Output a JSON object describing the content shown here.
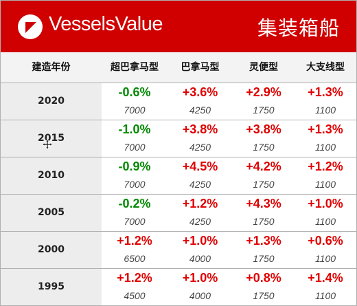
{
  "header": {
    "brand": "VesselsValue",
    "title": "集装箱船",
    "logo_icon": "vesselsvalue-triangle-logo-icon",
    "background_color": "#d00000"
  },
  "columns": [
    "建造年份",
    "超巴拿马型",
    "巴拿马型",
    "灵便型",
    "大支线型"
  ],
  "colors": {
    "negative": "#008a00",
    "positive": "#e00000"
  },
  "rows": [
    {
      "year": "2020",
      "cells": [
        {
          "pct": "-0.6%",
          "count": "7000"
        },
        {
          "pct": "+3.6%",
          "count": "4250"
        },
        {
          "pct": "+2.9%",
          "count": "1750"
        },
        {
          "pct": "+1.3%",
          "count": "1100"
        }
      ]
    },
    {
      "year": "2015",
      "cells": [
        {
          "pct": "-1.0%",
          "count": "7000"
        },
        {
          "pct": "+3.8%",
          "count": "4250"
        },
        {
          "pct": "+3.8%",
          "count": "1750"
        },
        {
          "pct": "+1.3%",
          "count": "1100"
        }
      ]
    },
    {
      "year": "2010",
      "cells": [
        {
          "pct": "-0.9%",
          "count": "7000"
        },
        {
          "pct": "+4.5%",
          "count": "4250"
        },
        {
          "pct": "+4.2%",
          "count": "1750"
        },
        {
          "pct": "+1.2%",
          "count": "1100"
        }
      ]
    },
    {
      "year": "2005",
      "cells": [
        {
          "pct": "-0.2%",
          "count": "7000"
        },
        {
          "pct": "+1.2%",
          "count": "4250"
        },
        {
          "pct": "+4.3%",
          "count": "1750"
        },
        {
          "pct": "+1.0%",
          "count": "1100"
        }
      ]
    },
    {
      "year": "2000",
      "cells": [
        {
          "pct": "+1.2%",
          "count": "6500"
        },
        {
          "pct": "+1.0%",
          "count": "4000"
        },
        {
          "pct": "+1.3%",
          "count": "1750"
        },
        {
          "pct": "+0.6%",
          "count": "1100"
        }
      ]
    },
    {
      "year": "1995",
      "cells": [
        {
          "pct": "+1.2%",
          "count": "4500"
        },
        {
          "pct": "+1.0%",
          "count": "4000"
        },
        {
          "pct": "+0.8%",
          "count": "1750"
        },
        {
          "pct": "+1.4%",
          "count": "1100"
        }
      ]
    }
  ],
  "cursor_icon": "move-cursor-icon"
}
